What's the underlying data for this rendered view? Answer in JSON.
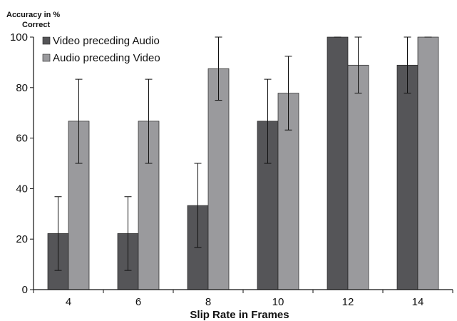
{
  "chart_data": {
    "type": "bar",
    "xlabel": "Slip Rate in Frames",
    "ylabel_line1": "Accuracy in %",
    "ylabel_line2": "Correct",
    "categories": [
      "4",
      "6",
      "8",
      "10",
      "12",
      "14"
    ],
    "ylim": [
      0,
      100
    ],
    "yticks": [
      "0",
      "20",
      "40",
      "60",
      "80",
      "100"
    ],
    "legend_position": "top-left",
    "grid": false,
    "series": [
      {
        "name": "Video preceding Audio",
        "color": "#555558",
        "values": [
          22.2,
          22.2,
          33.3,
          66.7,
          100,
          88.9
        ],
        "err_low": [
          7.6,
          7.6,
          16.7,
          50,
          100,
          77.8
        ],
        "err_high": [
          36.8,
          36.8,
          50,
          83.3,
          100,
          100
        ]
      },
      {
        "name": "Audio preceding Video",
        "color": "#9a9a9d",
        "values": [
          66.7,
          66.7,
          87.5,
          77.8,
          88.9,
          100
        ],
        "err_low": [
          50,
          50,
          75,
          63.2,
          77.8,
          100
        ],
        "err_high": [
          83.3,
          83.3,
          100,
          92.4,
          100,
          100
        ]
      }
    ]
  }
}
